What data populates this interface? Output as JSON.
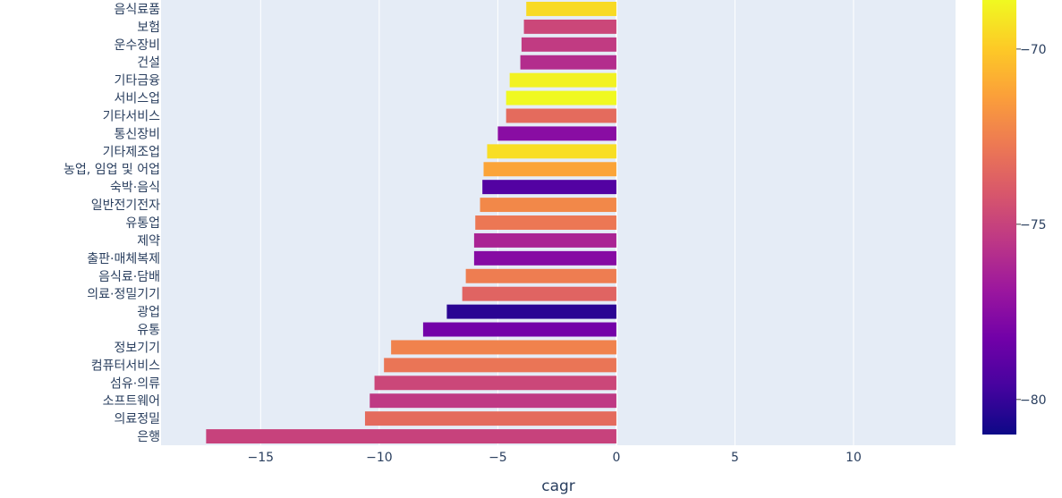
{
  "chart_data": {
    "type": "bar",
    "orientation": "horizontal",
    "xlabel": "cagr",
    "ylabel": "",
    "xlim": [
      -19.2,
      14.3
    ],
    "x_ticks": [
      -15,
      -10,
      -5,
      0,
      5,
      10
    ],
    "x_tick_labels": [
      "−15",
      "−10",
      "−5",
      "0",
      "5",
      "10"
    ],
    "grid": true,
    "categories": [
      "음식료품",
      "보험",
      "운수장비",
      "건설",
      "기타금융",
      "서비스업",
      "기타서비스",
      "통신장비",
      "기타제조업",
      "농업, 임업 및 어업",
      "숙박·음식",
      "일반전기전자",
      "유통업",
      "제약",
      "출판·매체복제",
      "음식료·담배",
      "의료·정밀기기",
      "광업",
      "유통",
      "정보기기",
      "컴퓨터서비스",
      "섬유·의류",
      "소프트웨어",
      "의료정밀",
      "은행"
    ],
    "values": [
      -3.8,
      -3.9,
      -4.0,
      -4.05,
      -4.5,
      -4.65,
      -4.65,
      -5.0,
      -5.45,
      -5.6,
      -5.65,
      -5.75,
      -5.95,
      -6.0,
      -6.0,
      -6.35,
      -6.5,
      -7.15,
      -8.15,
      -9.5,
      -9.8,
      -10.2,
      -10.4,
      -10.6,
      -17.3
    ],
    "color_values": [
      -69.5,
      -74.8,
      -75.3,
      -75.9,
      -68.8,
      -67.6,
      -73.3,
      -77.5,
      -69.4,
      -71.2,
      -79.2,
      -72.2,
      -72.8,
      -76.3,
      -77.6,
      -72.6,
      -73.6,
      -80.3,
      -78.2,
      -72.4,
      -72.9,
      -74.8,
      -75.4,
      -73.3,
      -75.0
    ],
    "colorbar": {
      "cmin": -81.0,
      "cmax": -68.6,
      "ticks": [
        -70,
        -75,
        -80
      ],
      "tick_labels": [
        "−70",
        "−75",
        "−80"
      ]
    },
    "colorscale": [
      "#0d0887",
      "#46039f",
      "#7201a8",
      "#9c179e",
      "#bd3786",
      "#d8576b",
      "#ed7953",
      "#fb9f3a",
      "#fdca26",
      "#f0f921"
    ]
  }
}
